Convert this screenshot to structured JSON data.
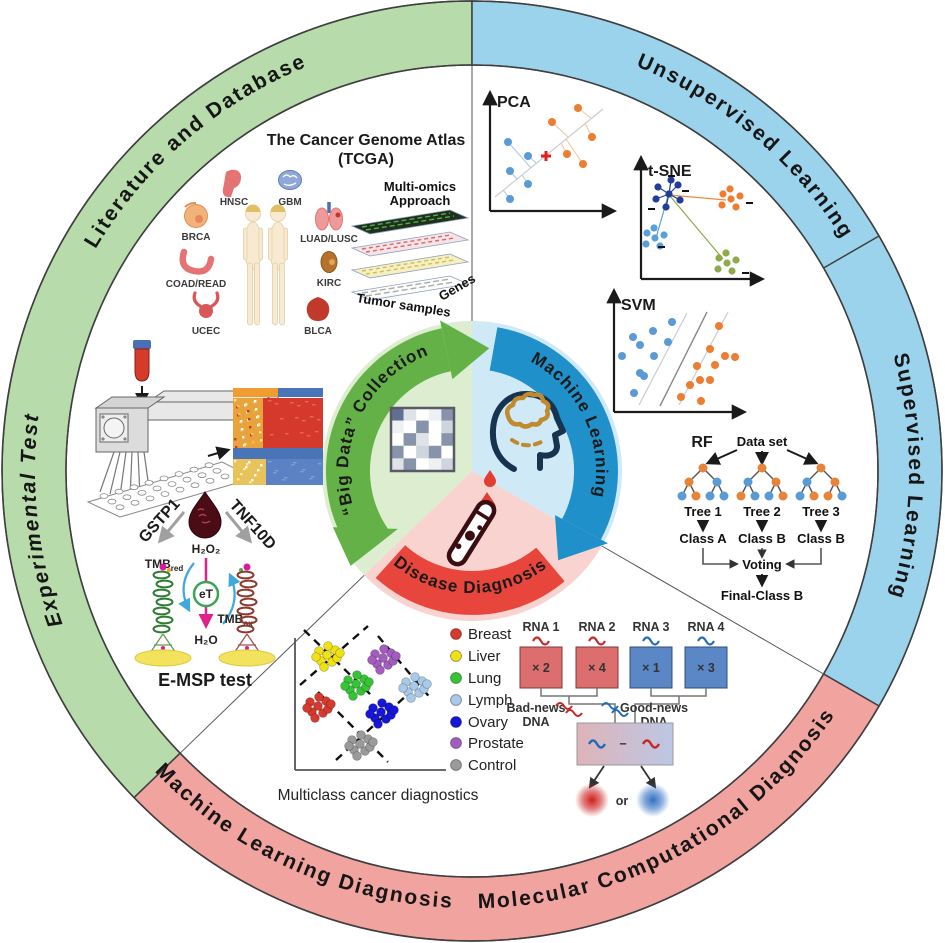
{
  "ring": {
    "colors": {
      "green": "#b7dbaa",
      "blue": "#9cd3ec",
      "pink": "#f1a3a0"
    },
    "labels": {
      "literature": "Literature and  Database",
      "unsupervised": "Unsupervised Learning",
      "supervised": "Supervised Learning",
      "experimental": "Experimental Test",
      "ml_diagnosis": "Machine Learning Diagnosis",
      "molecular_diagnosis": "Molecular Computational Diagnosis"
    }
  },
  "center": {
    "colors": {
      "green_arrow": "#64b147",
      "blue_arrow": "#1f90ca",
      "red_band": "#e8463c",
      "green_slice": "#ddedd0",
      "blue_slice": "#cfe9f7",
      "pink_slice": "#f8d3d0"
    },
    "big_data_label": "“Big Data” Collection",
    "machine_learning_label": "Machine Learning",
    "disease_diagnosis_label": "Disease Diagnosis"
  },
  "tcga": {
    "title": "The Cancer Genome Atlas",
    "title2": "(TCGA)",
    "organs": [
      {
        "label": "HNSC",
        "color": "#e57373"
      },
      {
        "label": "GBM",
        "color": "#8fa8d8"
      },
      {
        "label": "BRCA",
        "color": "#f2b27b"
      },
      {
        "label": "COAD/READ",
        "color": "#e57373"
      },
      {
        "label": "UCEC",
        "color": "#d95757"
      },
      {
        "label": "LUAD/LUSC",
        "color": "#ef9a9a"
      },
      {
        "label": "KIRC",
        "color": "#b5722d"
      },
      {
        "label": "BLCA",
        "color": "#c0392b"
      }
    ],
    "multiomics1": "Multi-omics",
    "multiomics2": "Approach",
    "tumor_samples": "Tumor samples",
    "genes": "Genes"
  },
  "plots": {
    "pca_label": "PCA",
    "tsne_label": "t-SNE",
    "svm_label": "SVM",
    "rf": {
      "label": "RF",
      "dataset": "Data set",
      "tree1": "Tree 1",
      "tree2": "Tree 2",
      "tree3": "Tree 3",
      "class1": "Class A",
      "class2": "Class B",
      "class3": "Class B",
      "voting": "Voting",
      "final": "Final-Class B"
    }
  },
  "emsp": {
    "gene_left": "GSTP1",
    "gene_right": "TNF10D",
    "h2o2": "H₂O₂",
    "h2o": "H₂O",
    "tmb_base": "TMB",
    "tmb_red_sub": "red",
    "tmb_ox_sub": "ox",
    "et": "eT",
    "caption": "E-MSP test"
  },
  "multiclass": {
    "caption": "Multiclass cancer diagnostics",
    "legend": [
      {
        "label": "Breast",
        "color": "#d63a2f"
      },
      {
        "label": "Liver",
        "color": "#f0e112"
      },
      {
        "label": "Lung",
        "color": "#36c436"
      },
      {
        "label": "Lymph",
        "color": "#a8c9e9"
      },
      {
        "label": "Ovary",
        "color": "#1616d8"
      },
      {
        "label": "Prostate",
        "color": "#a45cc0"
      },
      {
        "label": "Control",
        "color": "#9a9a9a"
      }
    ]
  },
  "rna": {
    "items": [
      {
        "label": "RNA 1",
        "mult": "× 2",
        "color": "#dd6e6e",
        "squiggle": "#c62828"
      },
      {
        "label": "RNA 2",
        "mult": "× 4",
        "color": "#dd6e6e",
        "squiggle": "#c62828"
      },
      {
        "label": "RNA 3",
        "mult": "× 1",
        "color": "#5b87c7",
        "squiggle": "#1e6bb8"
      },
      {
        "label": "RNA 4",
        "mult": "× 3",
        "color": "#5b87c7",
        "squiggle": "#1e6bb8"
      }
    ],
    "bad1": "Bad-news",
    "bad2": "DNA",
    "good1": "Good-news",
    "good2": "DNA",
    "minus": "−",
    "or": "or"
  }
}
